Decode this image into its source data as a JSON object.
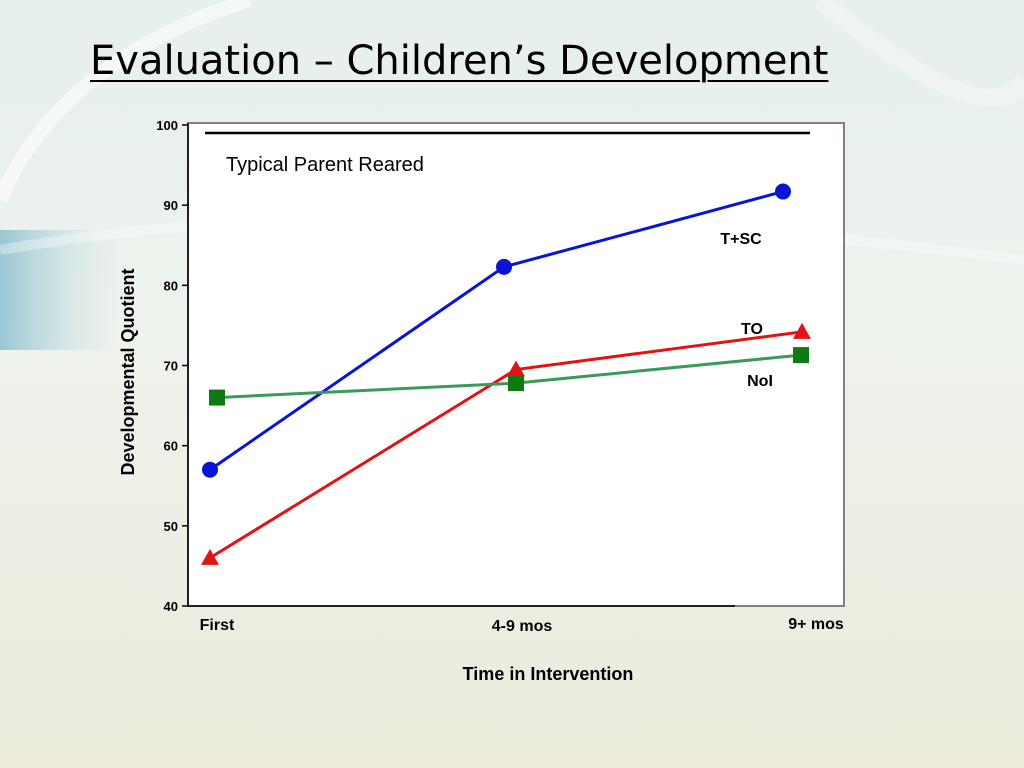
{
  "slide": {
    "title": "Evaluation – Children’s Development"
  },
  "chart_data": {
    "type": "line",
    "categories": [
      "First",
      "4-9 mos",
      "9+ mos"
    ],
    "xlabel": "Time in Intervention",
    "ylabel": "Developmental Quotient",
    "ylim": [
      40,
      100
    ],
    "yticks": [
      40,
      50,
      60,
      70,
      80,
      90,
      100
    ],
    "grid": false,
    "reference_line": {
      "label": "Typical Parent Reared",
      "value": 99,
      "color": "#000000"
    },
    "series": [
      {
        "name": "T+SC",
        "values": [
          57,
          82.3,
          91.7
        ],
        "color": "#0a14d6",
        "marker": "circle"
      },
      {
        "name": "TO",
        "values": [
          46,
          69.5,
          74.2
        ],
        "color": "#e01414",
        "marker": "triangle"
      },
      {
        "name": "NoI",
        "values": [
          66,
          67.8,
          71.3
        ],
        "color": "#3a9a5a",
        "marker": "square",
        "marker_color": "#0f7a14"
      }
    ]
  }
}
